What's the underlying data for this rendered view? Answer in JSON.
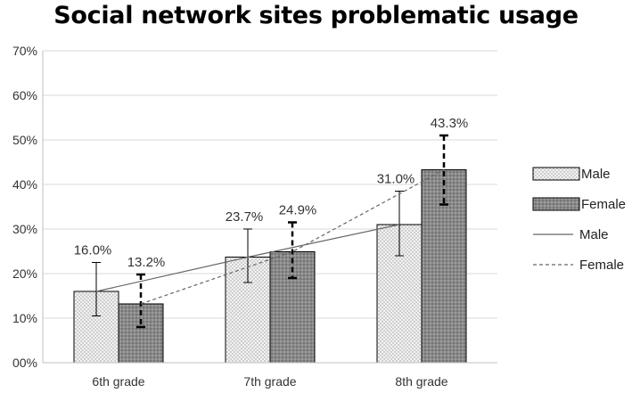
{
  "chart_data": {
    "type": "bar",
    "title": "Social network sites problematic usage",
    "xlabel": "",
    "ylabel": "",
    "categories": [
      "6th grade",
      "7th grade",
      "8th grade"
    ],
    "ylim": [
      0,
      70
    ],
    "y_ticks": [
      "00%",
      "10%",
      "20%",
      "30%",
      "40%",
      "50%",
      "60%",
      "70%"
    ],
    "grid": true,
    "legend_position": "right",
    "series": [
      {
        "name": "Male",
        "values": [
          16.0,
          23.7,
          31.0
        ],
        "labels": [
          "16.0%",
          "23.7%",
          "31.0%"
        ],
        "error": [
          [
            10.5,
            22.5
          ],
          [
            18.0,
            30.0
          ],
          [
            24.0,
            38.5
          ]
        ],
        "fill": "dotted-light"
      },
      {
        "name": "Female",
        "values": [
          13.2,
          24.9,
          43.3
        ],
        "labels": [
          "13.2%",
          "24.9%",
          "43.3%"
        ],
        "error": [
          [
            8.0,
            19.8
          ],
          [
            19.0,
            31.5
          ],
          [
            35.5,
            51.0
          ]
        ],
        "fill": "dotted-dark"
      }
    ],
    "trend_lines": [
      {
        "name": "Male",
        "style": "solid",
        "values": [
          16.0,
          23.7,
          31.0
        ]
      },
      {
        "name": "Female",
        "style": "dashed",
        "values": [
          13.2,
          24.9,
          43.3
        ]
      }
    ]
  },
  "colors": {
    "male_bar": "#e6e6e6",
    "female_bar": "#808080",
    "gridline": "#d9d9d9",
    "trend": "#666666"
  }
}
